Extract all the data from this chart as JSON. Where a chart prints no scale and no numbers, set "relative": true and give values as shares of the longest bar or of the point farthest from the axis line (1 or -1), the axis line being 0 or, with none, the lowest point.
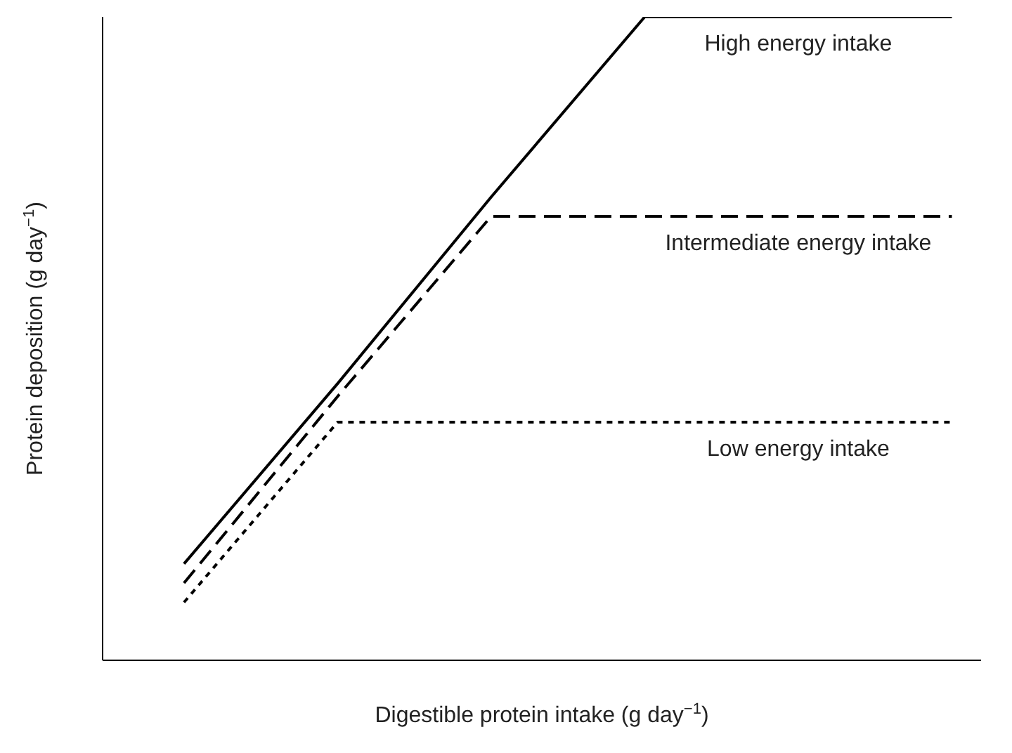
{
  "chart_data": {
    "type": "line",
    "relative": true,
    "xlabel": "Digestible protein intake (g day$^{−1}$)",
    "ylabel": "Protein deposition (g day$^{−1}$)",
    "categories": [
      null,
      null,
      null,
      null,
      null,
      null
    ],
    "series": [
      {
        "name": "High energy intake",
        "color": "#000000",
        "line_style": "solid",
        "values": [
          0.15,
          0.43,
          0.72,
          1,
          1,
          1
        ]
      },
      {
        "name": "Intermediate energy intake",
        "color": "#000000",
        "line_style": "dashed",
        "values": [
          0.12,
          0.41,
          0.69,
          0.69,
          0.69,
          0.69
        ]
      },
      {
        "name": "Low energy intake",
        "color": "#000000",
        "line_style": "dotted",
        "values": [
          0.09,
          0.37,
          0.37,
          0.37,
          0.37,
          0.37
        ]
      }
    ]
  }
}
